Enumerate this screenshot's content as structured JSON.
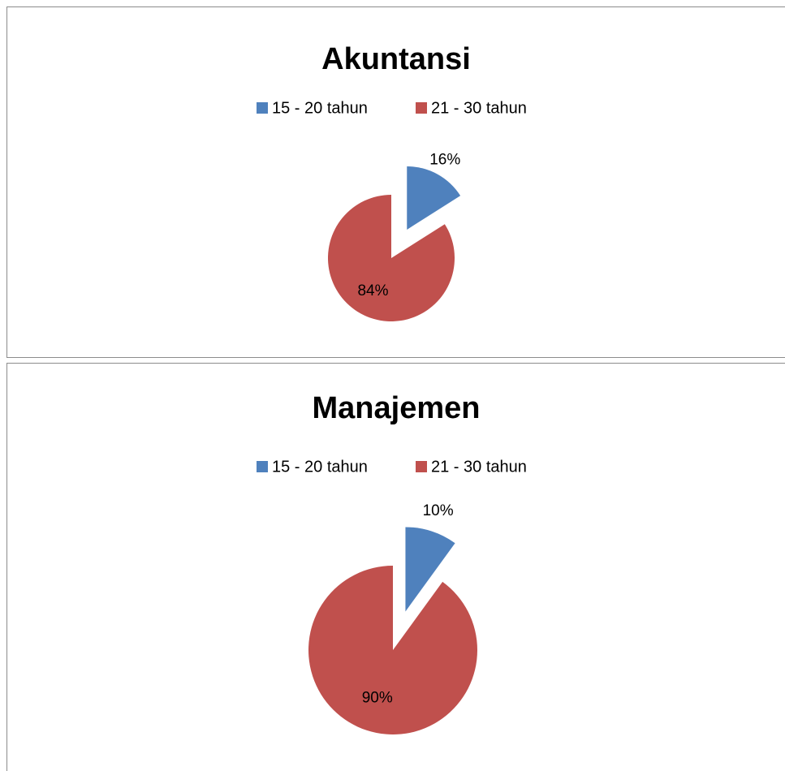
{
  "chart_data": [
    {
      "type": "pie",
      "title": "Akuntansi",
      "categories": [
        "15 - 20 tahun",
        "21 - 30 tahun"
      ],
      "values": [
        16,
        84
      ],
      "value_labels": [
        "16%",
        "84%"
      ],
      "colors": [
        "#4f81bd",
        "#c0504d"
      ],
      "legend": "top"
    },
    {
      "type": "pie",
      "title": "Manajemen",
      "categories": [
        "15 - 20 tahun",
        "21 - 30 tahun"
      ],
      "values": [
        10,
        90
      ],
      "value_labels": [
        "10%",
        "90%"
      ],
      "colors": [
        "#4f81bd",
        "#c0504d"
      ],
      "legend": "top"
    }
  ]
}
